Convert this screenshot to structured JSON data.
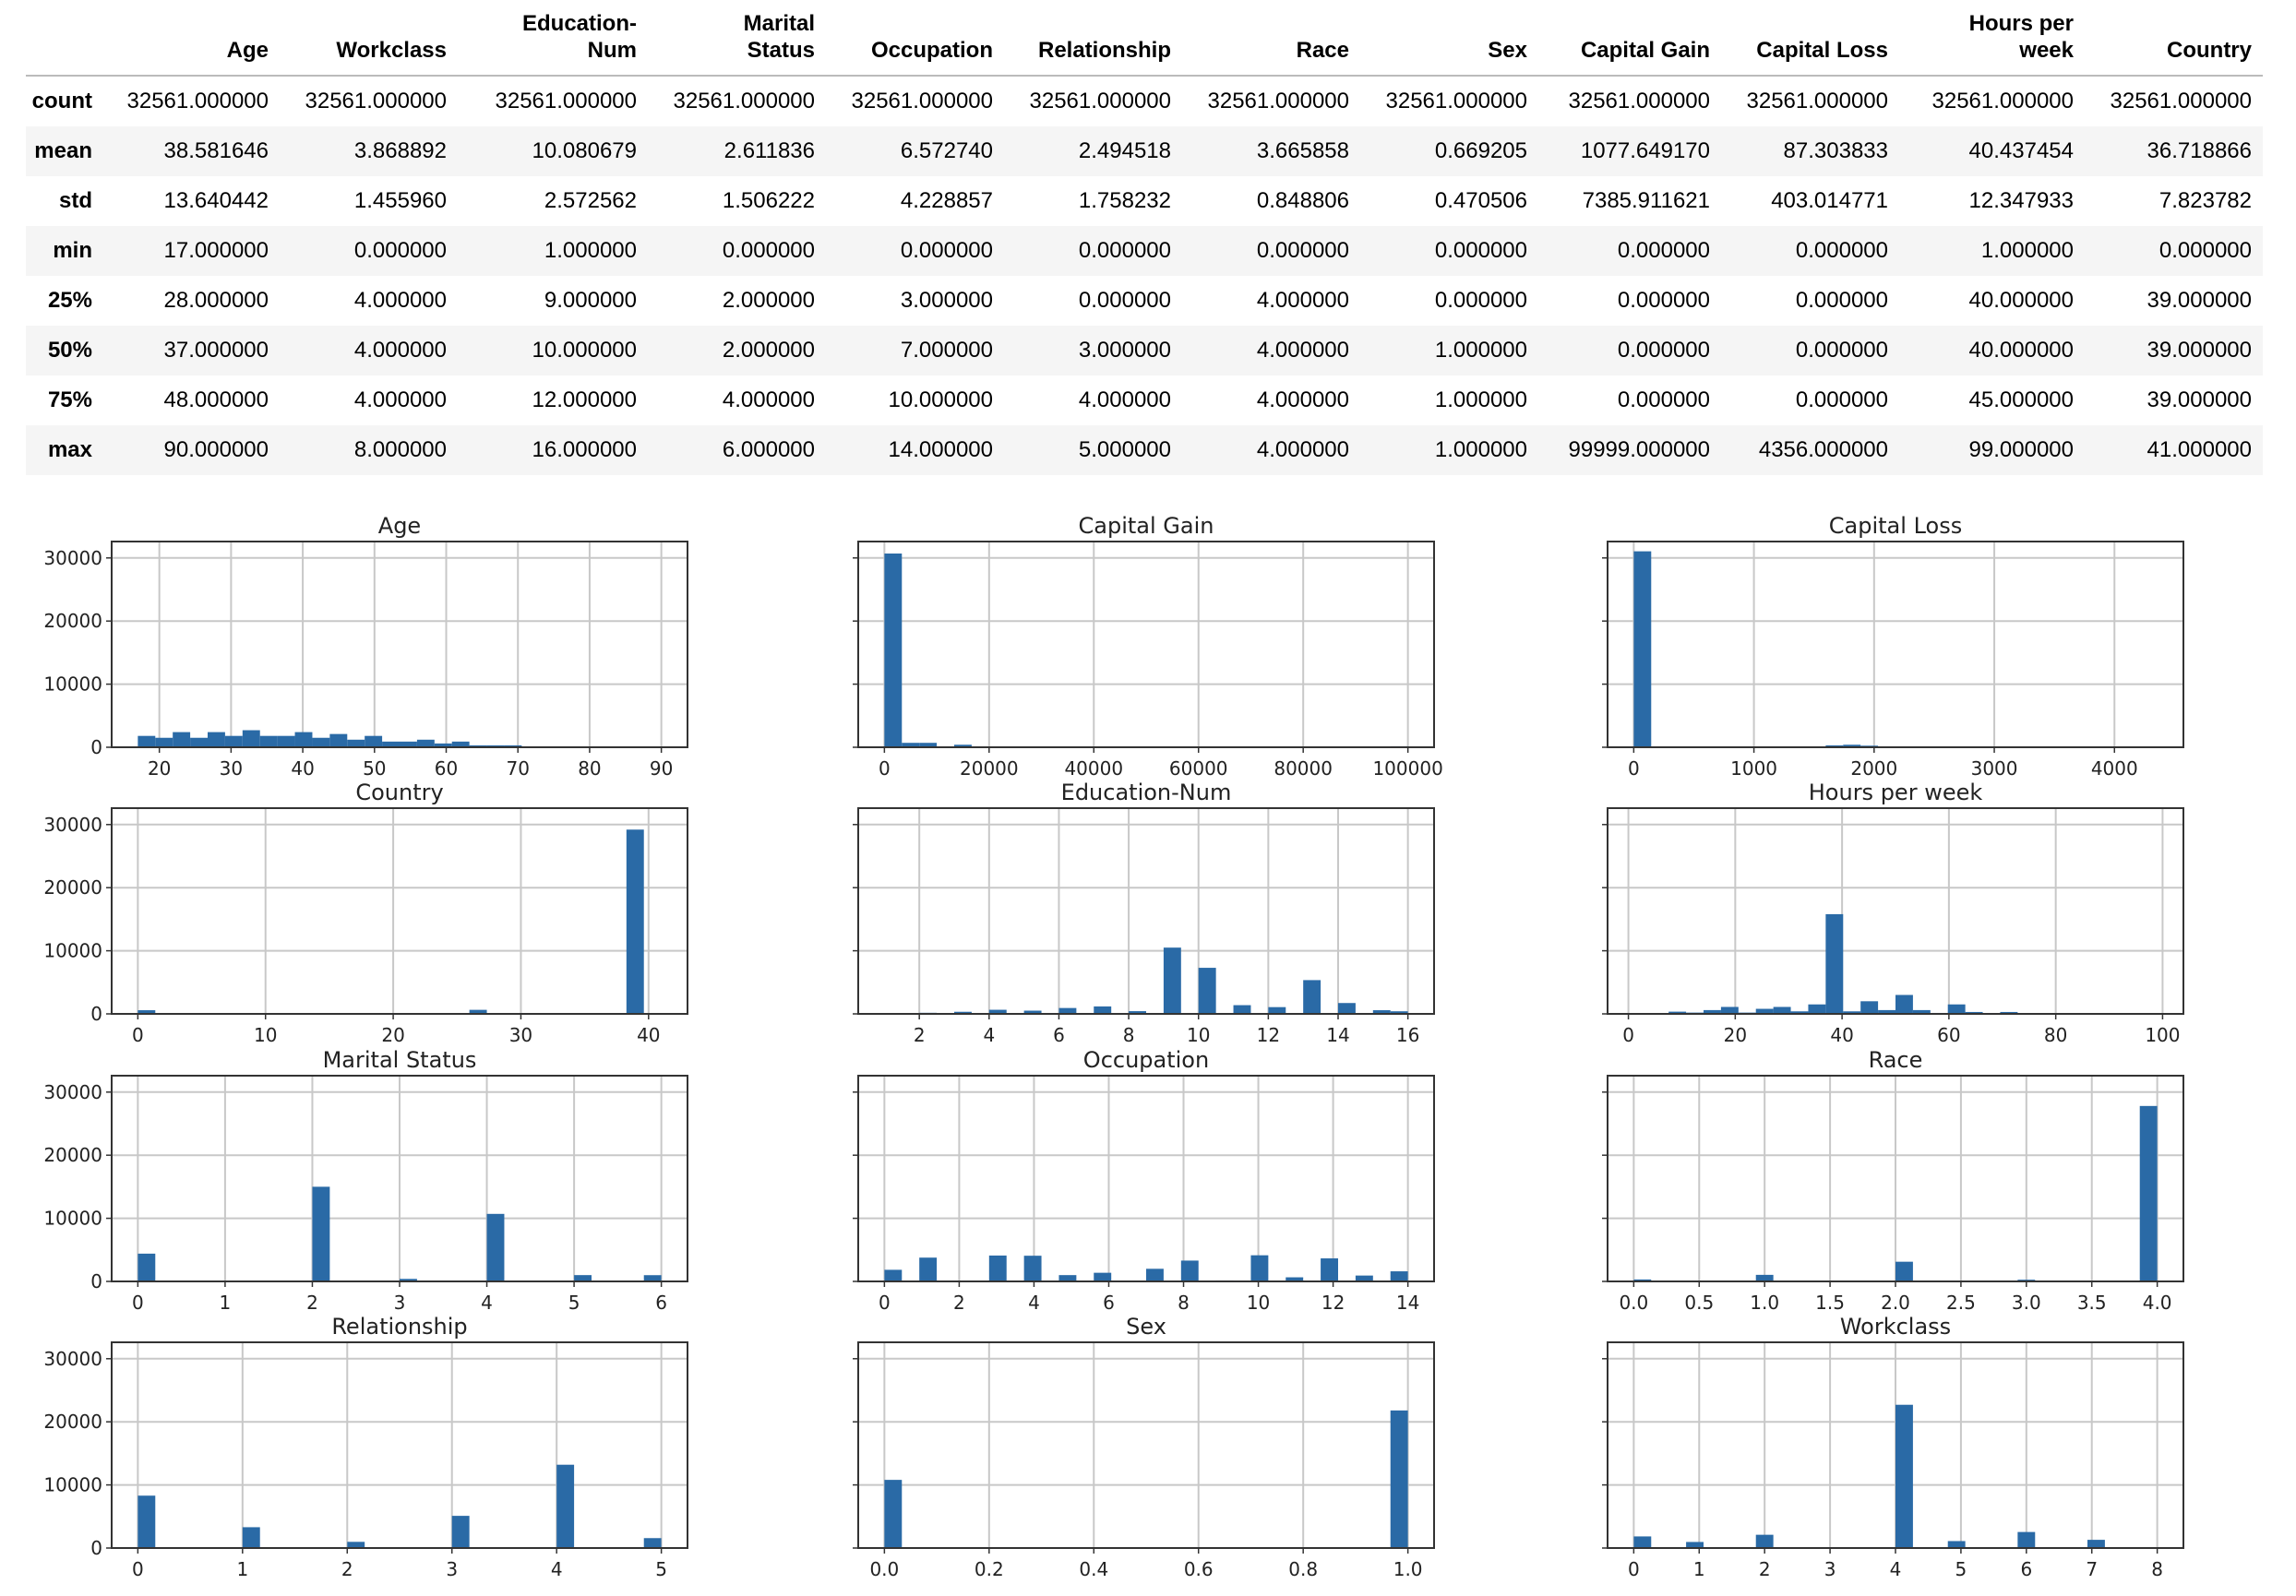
{
  "table": {
    "columns": [
      "Age",
      "Workclass",
      "Education-\nNum",
      "Marital\nStatus",
      "Occupation",
      "Relationship",
      "Race",
      "Sex",
      "Capital Gain",
      "Capital Loss",
      "Hours per\nweek",
      "Country"
    ],
    "rows": [
      {
        "label": "count",
        "values": [
          "32561.000000",
          "32561.000000",
          "32561.000000",
          "32561.000000",
          "32561.000000",
          "32561.000000",
          "32561.000000",
          "32561.000000",
          "32561.000000",
          "32561.000000",
          "32561.000000",
          "32561.000000"
        ]
      },
      {
        "label": "mean",
        "values": [
          "38.581646",
          "3.868892",
          "10.080679",
          "2.611836",
          "6.572740",
          "2.494518",
          "3.665858",
          "0.669205",
          "1077.649170",
          "87.303833",
          "40.437454",
          "36.718866"
        ]
      },
      {
        "label": "std",
        "values": [
          "13.640442",
          "1.455960",
          "2.572562",
          "1.506222",
          "4.228857",
          "1.758232",
          "0.848806",
          "0.470506",
          "7385.911621",
          "403.014771",
          "12.347933",
          "7.823782"
        ]
      },
      {
        "label": "min",
        "values": [
          "17.000000",
          "0.000000",
          "1.000000",
          "0.000000",
          "0.000000",
          "0.000000",
          "0.000000",
          "0.000000",
          "0.000000",
          "0.000000",
          "1.000000",
          "0.000000"
        ]
      },
      {
        "label": "25%",
        "values": [
          "28.000000",
          "4.000000",
          "9.000000",
          "2.000000",
          "3.000000",
          "0.000000",
          "4.000000",
          "0.000000",
          "0.000000",
          "0.000000",
          "40.000000",
          "39.000000"
        ]
      },
      {
        "label": "50%",
        "values": [
          "37.000000",
          "4.000000",
          "10.000000",
          "2.000000",
          "7.000000",
          "3.000000",
          "4.000000",
          "1.000000",
          "0.000000",
          "0.000000",
          "40.000000",
          "39.000000"
        ]
      },
      {
        "label": "75%",
        "values": [
          "48.000000",
          "4.000000",
          "12.000000",
          "4.000000",
          "10.000000",
          "4.000000",
          "4.000000",
          "1.000000",
          "0.000000",
          "0.000000",
          "45.000000",
          "39.000000"
        ]
      },
      {
        "label": "max",
        "values": [
          "90.000000",
          "8.000000",
          "16.000000",
          "6.000000",
          "14.000000",
          "5.000000",
          "4.000000",
          "1.000000",
          "99999.000000",
          "4356.000000",
          "99.000000",
          "41.000000"
        ]
      }
    ]
  },
  "bar_color": "#2a6aa6",
  "chart_data": [
    {
      "type": "bar",
      "title": "Age",
      "bin_range": [
        17,
        90
      ],
      "bins": 30,
      "ylim": [
        0,
        32600
      ],
      "grid": true,
      "yticks": [
        0,
        10000,
        20000,
        30000
      ],
      "xticks": [
        20,
        30,
        40,
        50,
        60,
        70,
        80,
        90
      ],
      "counts": [
        1800,
        1500,
        2400,
        1500,
        2400,
        1800,
        2700,
        1800,
        1800,
        2400,
        1500,
        2100,
        1200,
        1800,
        900,
        900,
        1200,
        600,
        900,
        300,
        300,
        300,
        100,
        80,
        50,
        30,
        20,
        10,
        5,
        45
      ]
    },
    {
      "type": "bar",
      "title": "Capital Gain",
      "bin_range": [
        0,
        99999
      ],
      "bins": 30,
      "ylim": [
        0,
        32600
      ],
      "grid": true,
      "yticks": [
        0,
        10000,
        20000,
        30000
      ],
      "xticks": [
        0,
        20000,
        40000,
        60000,
        80000,
        100000
      ],
      "counts": [
        30700,
        700,
        700,
        10,
        400,
        0,
        0,
        0,
        0,
        0,
        0,
        0,
        0,
        0,
        0,
        0,
        0,
        0,
        0,
        0,
        0,
        0,
        0,
        0,
        0,
        0,
        0,
        0,
        0,
        160
      ]
    },
    {
      "type": "bar",
      "title": "Capital Loss",
      "bin_range": [
        0,
        4356
      ],
      "bins": 30,
      "ylim": [
        0,
        32600
      ],
      "grid": true,
      "yticks": [
        0,
        10000,
        20000,
        30000
      ],
      "xticks": [
        0,
        1000,
        2000,
        3000,
        4000
      ],
      "counts": [
        31050,
        0,
        0,
        0,
        0,
        0,
        0,
        0,
        0,
        0,
        20,
        300,
        400,
        250,
        20,
        10,
        0,
        0,
        0,
        0,
        0,
        0,
        0,
        0,
        0,
        0,
        0,
        0,
        0,
        5
      ]
    },
    {
      "type": "bar",
      "title": "Country",
      "bin_range": [
        0,
        41
      ],
      "bins": 30,
      "ylim": [
        0,
        32600
      ],
      "grid": true,
      "yticks": [
        0,
        10000,
        20000,
        30000
      ],
      "xticks": [
        0,
        10,
        20,
        30,
        40
      ],
      "counts": [
        580,
        60,
        70,
        80,
        40,
        100,
        90,
        80,
        60,
        50,
        40,
        30,
        60,
        70,
        40,
        30,
        50,
        40,
        60,
        640,
        40,
        50,
        30,
        40,
        60,
        50,
        30,
        40,
        29200,
        10
      ]
    },
    {
      "type": "bar",
      "title": "Education-Num",
      "bin_range": [
        1,
        16
      ],
      "bins": 30,
      "ylim": [
        0,
        32600
      ],
      "grid": true,
      "yticks": [
        0,
        10000,
        20000,
        30000
      ],
      "xticks": [
        2,
        4,
        6,
        8,
        10,
        12,
        14,
        16
      ],
      "counts": [
        50,
        0,
        170,
        0,
        330,
        0,
        650,
        0,
        510,
        0,
        930,
        0,
        1180,
        0,
        430,
        0,
        10500,
        0,
        7300,
        0,
        1380,
        0,
        1070,
        0,
        5350,
        0,
        1720,
        0,
        580,
        410
      ]
    },
    {
      "type": "bar",
      "title": "Hours per week",
      "bin_range": [
        1,
        99
      ],
      "bins": 30,
      "ylim": [
        0,
        32600
      ],
      "grid": true,
      "yticks": [
        0,
        10000,
        20000,
        30000
      ],
      "xticks": [
        0,
        20,
        40,
        60,
        80,
        100
      ],
      "counts": [
        50,
        100,
        350,
        200,
        600,
        1100,
        200,
        800,
        1100,
        400,
        1500,
        15800,
        400,
        2000,
        600,
        3000,
        600,
        150,
        1500,
        300,
        50,
        300,
        50,
        100,
        20,
        30,
        20,
        10,
        10,
        100
      ]
    },
    {
      "type": "bar",
      "title": "Marital Status",
      "bin_range": [
        0,
        6
      ],
      "bins": 30,
      "ylim": [
        0,
        32600
      ],
      "grid": true,
      "yticks": [
        0,
        10000,
        20000,
        30000
      ],
      "xticks": [
        0,
        1,
        2,
        3,
        4,
        5,
        6
      ],
      "counts": [
        4400,
        0,
        0,
        0,
        0,
        20,
        0,
        0,
        0,
        0,
        15000,
        0,
        0,
        0,
        0,
        400,
        0,
        0,
        0,
        0,
        10700,
        0,
        0,
        0,
        0,
        1000,
        0,
        0,
        0,
        990
      ]
    },
    {
      "type": "bar",
      "title": "Occupation",
      "bin_range": [
        0,
        14
      ],
      "bins": 30,
      "ylim": [
        0,
        32600
      ],
      "grid": true,
      "yticks": [
        0,
        10000,
        20000,
        30000
      ],
      "xticks": [
        0,
        2,
        4,
        6,
        8,
        10,
        12,
        14
      ],
      "counts": [
        1840,
        0,
        3770,
        0,
        9,
        0,
        4100,
        0,
        4070,
        0,
        1000,
        0,
        1370,
        0,
        0,
        2000,
        0,
        3300,
        0,
        150,
        0,
        4140,
        0,
        650,
        0,
        3650,
        0,
        930,
        0,
        1600
      ]
    },
    {
      "type": "bar",
      "title": "Race",
      "bin_range": [
        0,
        4
      ],
      "bins": 30,
      "ylim": [
        0,
        32600
      ],
      "grid": true,
      "yticks": [
        0,
        10000,
        20000,
        30000
      ],
      "xticks": [
        "0.0",
        "0.5",
        "1.0",
        "1.5",
        "2.0",
        "2.5",
        "3.0",
        "3.5",
        "4.0"
      ],
      "counts": [
        310,
        0,
        0,
        0,
        0,
        0,
        0,
        1040,
        0,
        0,
        0,
        0,
        0,
        0,
        0,
        3120,
        0,
        0,
        0,
        0,
        0,
        0,
        270,
        0,
        0,
        0,
        0,
        0,
        0,
        27800
      ]
    },
    {
      "type": "bar",
      "title": "Relationship",
      "bin_range": [
        0,
        5
      ],
      "bins": 30,
      "ylim": [
        0,
        32600
      ],
      "grid": true,
      "yticks": [
        0,
        10000,
        20000,
        30000
      ],
      "xticks": [
        0,
        1,
        2,
        3,
        4,
        5
      ],
      "counts": [
        8300,
        0,
        0,
        0,
        0,
        0,
        3300,
        0,
        0,
        0,
        0,
        0,
        980,
        0,
        0,
        0,
        0,
        0,
        5100,
        0,
        0,
        0,
        0,
        0,
        13200,
        0,
        0,
        0,
        0,
        1570
      ]
    },
    {
      "type": "bar",
      "title": "Sex",
      "bin_range": [
        0,
        1
      ],
      "bins": 30,
      "ylim": [
        0,
        32600
      ],
      "grid": true,
      "yticks": [
        0,
        10000,
        20000,
        30000
      ],
      "xticks": [
        "0.0",
        "0.2",
        "0.4",
        "0.6",
        "0.8",
        "1.0"
      ],
      "counts": [
        10800,
        0,
        0,
        0,
        0,
        0,
        0,
        0,
        0,
        0,
        0,
        0,
        0,
        0,
        0,
        0,
        0,
        0,
        0,
        0,
        0,
        0,
        0,
        0,
        0,
        0,
        0,
        0,
        0,
        21800
      ]
    },
    {
      "type": "bar",
      "title": "Workclass",
      "bin_range": [
        0,
        8
      ],
      "bins": 30,
      "ylim": [
        0,
        32600
      ],
      "grid": true,
      "yticks": [
        0,
        10000,
        20000,
        30000
      ],
      "xticks": [
        0,
        1,
        2,
        3,
        4,
        5,
        6,
        7,
        8
      ],
      "counts": [
        1840,
        0,
        0,
        960,
        0,
        0,
        0,
        2100,
        0,
        0,
        0,
        7,
        0,
        0,
        0,
        22700,
        0,
        0,
        1100,
        0,
        0,
        0,
        2540,
        0,
        0,
        0,
        1300,
        0,
        0,
        14
      ]
    }
  ]
}
